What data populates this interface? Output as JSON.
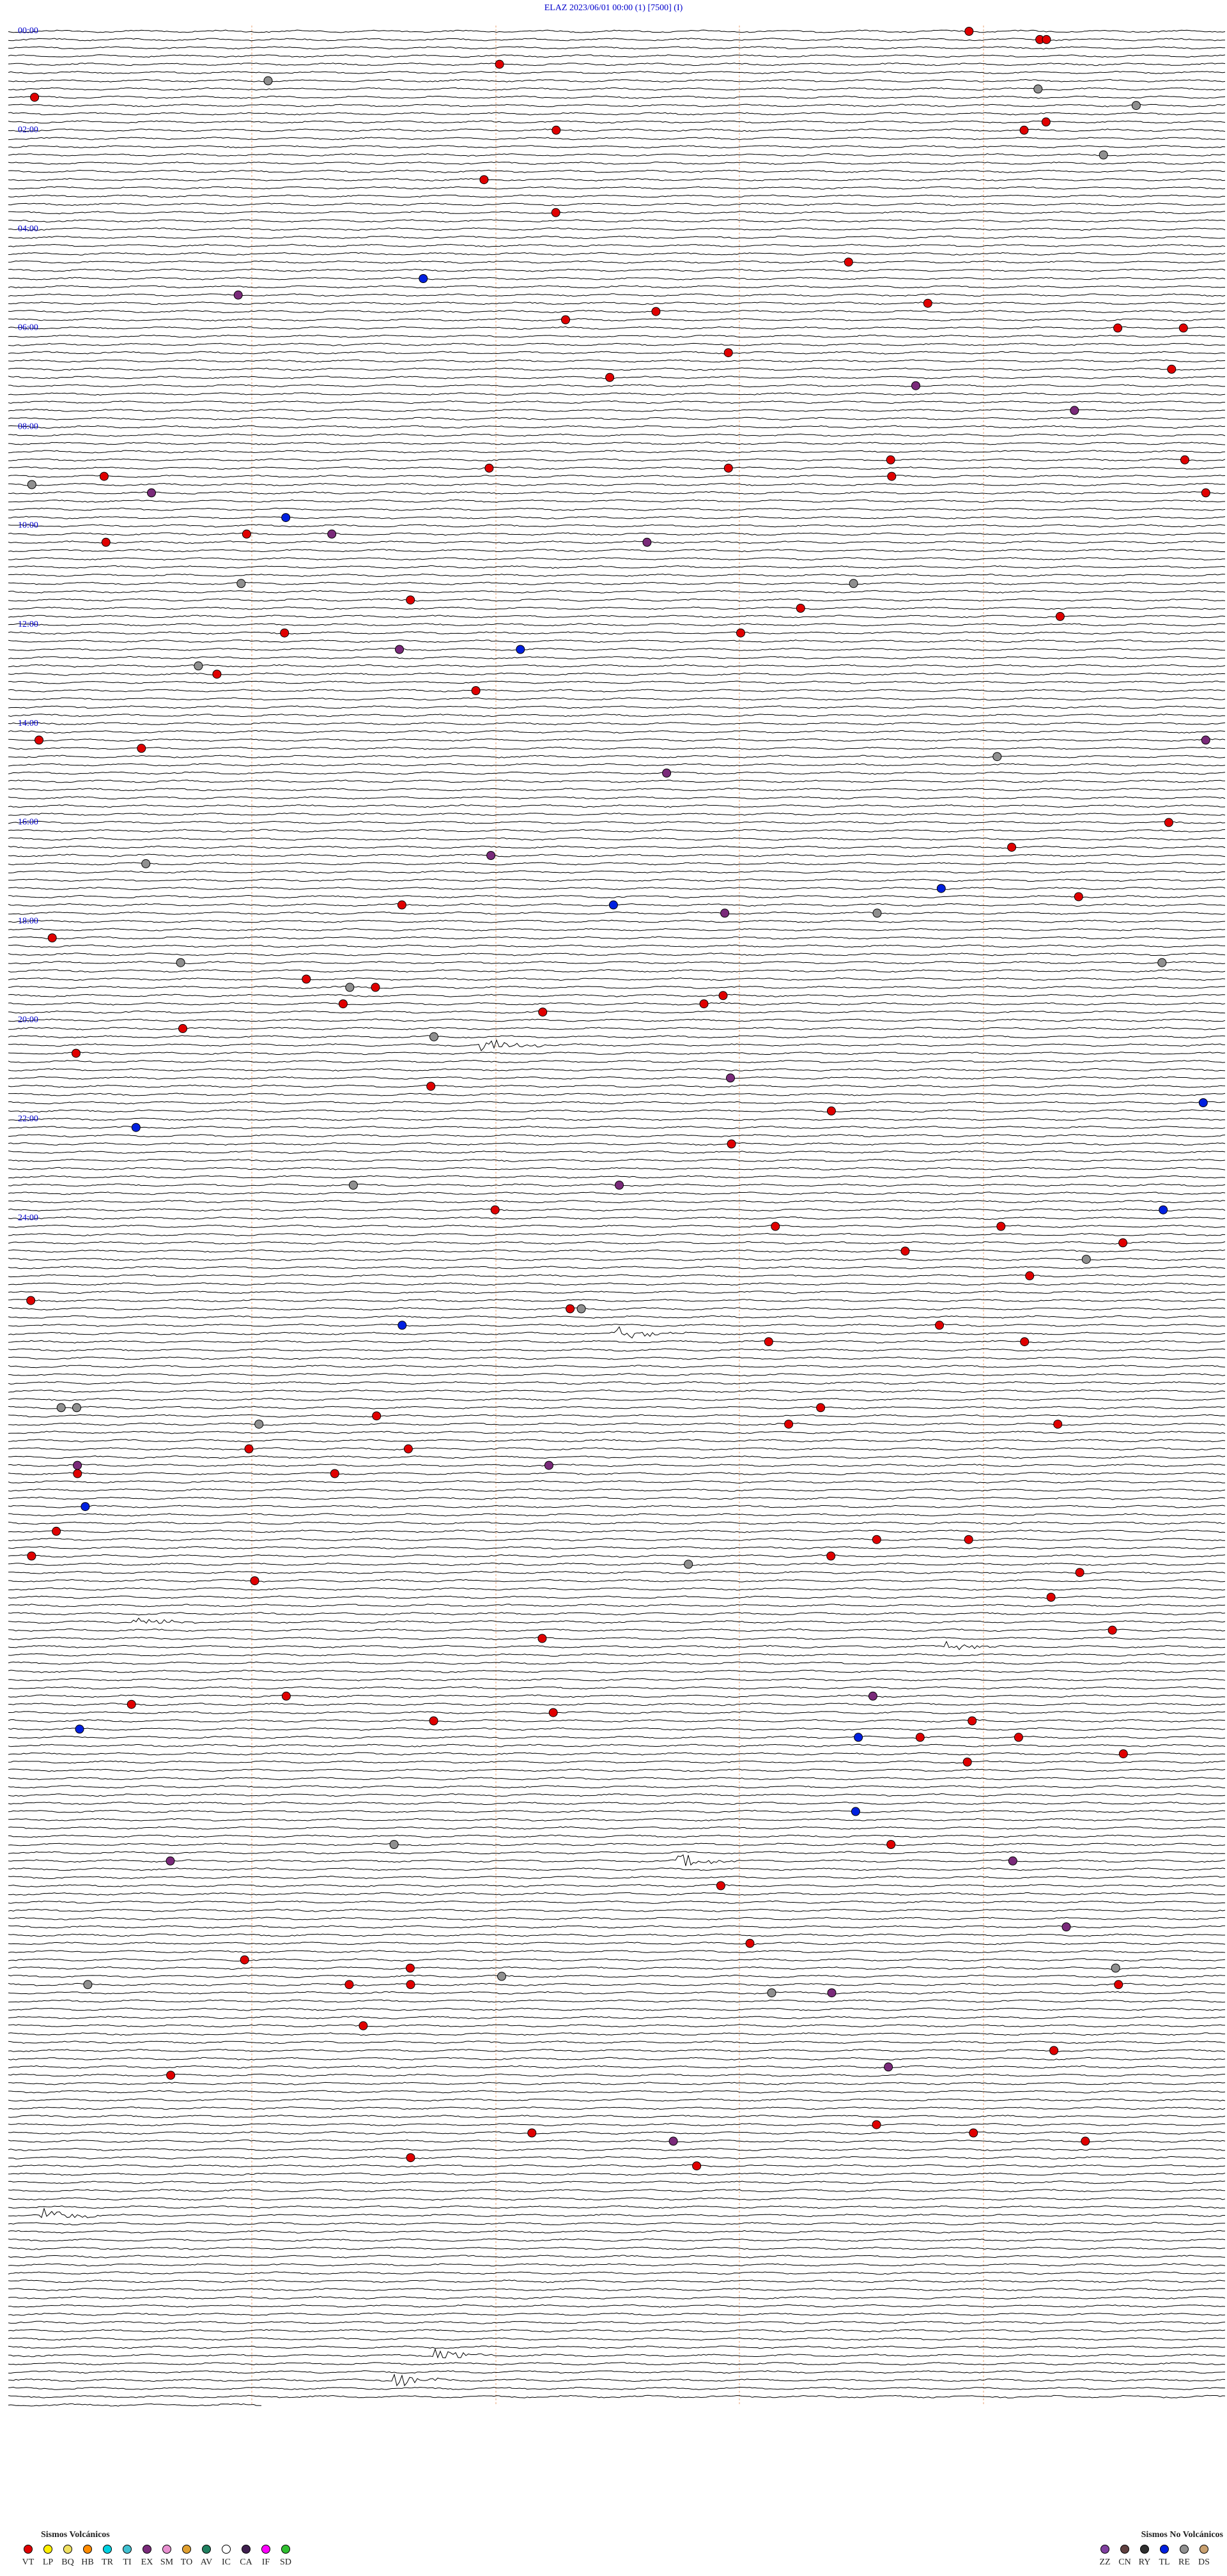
{
  "header": {
    "title": "ELAZ    2023/06/01 00:00     (1)    [7500]  (I)"
  },
  "hour_labels": [
    "00:00",
    "02:00",
    "04:00",
    "06:00",
    "08:00",
    "10:00",
    "12:00",
    "14:00",
    "16:00",
    "18:00",
    "20:00",
    "22:00",
    "24:00"
  ],
  "legend": {
    "volcanic": {
      "title": "Sismos Volcánicos",
      "items": [
        {
          "label": "VT",
          "color": "#e00000"
        },
        {
          "label": "LP",
          "color": "#ffee00"
        },
        {
          "label": "BQ",
          "color": "#f0e060"
        },
        {
          "label": "HB",
          "color": "#ff8c00"
        },
        {
          "label": "TR",
          "color": "#00d0e0"
        },
        {
          "label": "TI",
          "color": "#40c0d0"
        },
        {
          "label": "EX",
          "color": "#7a2a7a"
        },
        {
          "label": "SM",
          "color": "#e890d0"
        },
        {
          "label": "TO",
          "color": "#e0a030"
        },
        {
          "label": "AV",
          "color": "#208060"
        },
        {
          "label": "IC",
          "color": "#ffffff"
        },
        {
          "label": "CA",
          "color": "#402050"
        },
        {
          "label": "IF",
          "color": "#ff00ff"
        },
        {
          "label": "SD",
          "color": "#30c030"
        }
      ]
    },
    "non_volcanic": {
      "title": "Sismos No Volcánicos",
      "items": [
        {
          "label": "ZZ",
          "color": "#8040a0"
        },
        {
          "label": "CN",
          "color": "#604040"
        },
        {
          "label": "RY",
          "color": "#303030"
        },
        {
          "label": "TL",
          "color": "#0020e0"
        },
        {
          "label": "RE",
          "color": "#909090"
        },
        {
          "label": "DS",
          "color": "#c8a070"
        }
      ]
    }
  }
}
